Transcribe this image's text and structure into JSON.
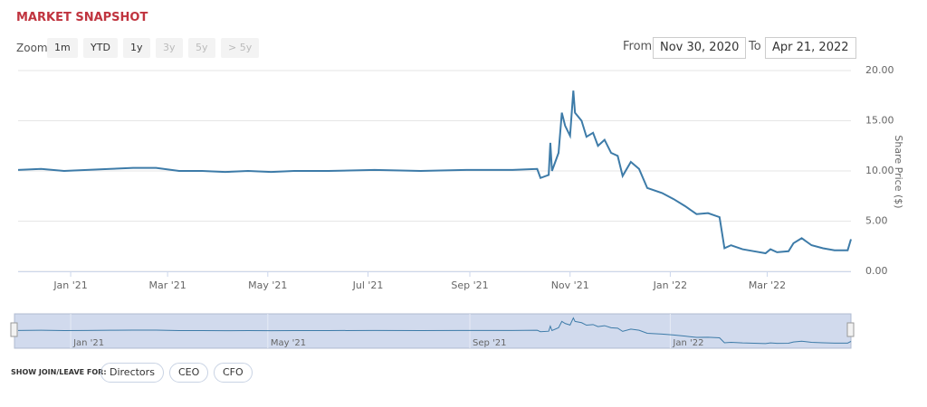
{
  "header": {
    "title": "MARKET SNAPSHOT"
  },
  "zoom": {
    "label": "Zoom",
    "buttons": [
      "1m",
      "YTD",
      "1y",
      "3y",
      "5y",
      "> 5y"
    ]
  },
  "range": {
    "from_label": "From",
    "from": "Nov 30, 2020",
    "to_label": "To",
    "to": "Apr 21, 2022"
  },
  "chart_data": {
    "type": "line",
    "y_label": "Share Price ($)",
    "x": [
      "2020-11-30",
      "2020-12-14",
      "2020-12-28",
      "2021-01-11",
      "2021-01-25",
      "2021-02-08",
      "2021-02-22",
      "2021-03-08",
      "2021-03-22",
      "2021-04-05",
      "2021-04-19",
      "2021-05-03",
      "2021-05-17",
      "2021-06-07",
      "2021-07-05",
      "2021-08-02",
      "2021-08-30",
      "2021-09-27",
      "2021-10-12",
      "2021-10-14",
      "2021-10-19",
      "2021-10-20",
      "2021-10-21",
      "2021-10-25",
      "2021-10-27",
      "2021-10-29",
      "2021-11-01",
      "2021-11-03",
      "2021-11-04",
      "2021-11-08",
      "2021-11-11",
      "2021-11-15",
      "2021-11-18",
      "2021-11-22",
      "2021-11-26",
      "2021-11-30",
      "2021-12-03",
      "2021-12-08",
      "2021-12-13",
      "2021-12-18",
      "2021-12-27",
      "2022-01-03",
      "2022-01-10",
      "2022-01-17",
      "2022-01-24",
      "2022-01-31",
      "2022-02-03",
      "2022-02-07",
      "2022-02-14",
      "2022-02-21",
      "2022-02-28",
      "2022-03-03",
      "2022-03-07",
      "2022-03-14",
      "2022-03-17",
      "2022-03-22",
      "2022-03-28",
      "2022-04-04",
      "2022-04-11",
      "2022-04-19",
      "2022-04-21"
    ],
    "series": [
      {
        "name": "Share Price",
        "color": "#3d7ba8",
        "values": [
          10.1,
          10.2,
          10.0,
          10.1,
          10.2,
          10.3,
          10.3,
          10.0,
          10.0,
          9.9,
          10.0,
          9.9,
          10.0,
          10.0,
          10.1,
          10.0,
          10.1,
          10.1,
          10.2,
          9.3,
          9.6,
          12.8,
          10.0,
          11.8,
          15.8,
          14.5,
          13.5,
          18.0,
          15.8,
          15.0,
          13.4,
          13.8,
          12.5,
          13.1,
          11.8,
          11.5,
          9.5,
          10.9,
          10.2,
          8.3,
          7.8,
          7.2,
          6.5,
          5.7,
          5.8,
          5.4,
          2.3,
          2.6,
          2.2,
          2.0,
          1.8,
          2.2,
          1.9,
          2.0,
          2.8,
          3.3,
          2.6,
          2.3,
          2.1,
          2.1,
          3.2
        ]
      }
    ],
    "xlim": [
      "2020-11-30",
      "2022-04-21"
    ],
    "xticks": [
      {
        "value": "2021-01-01",
        "label": "Jan '21"
      },
      {
        "value": "2021-03-01",
        "label": "Mar '21"
      },
      {
        "value": "2021-05-01",
        "label": "May '21"
      },
      {
        "value": "2021-07-01",
        "label": "Jul '21"
      },
      {
        "value": "2021-09-01",
        "label": "Sep '21"
      },
      {
        "value": "2021-11-01",
        "label": "Nov '21"
      },
      {
        "value": "2022-01-01",
        "label": "Jan '22"
      },
      {
        "value": "2022-03-01",
        "label": "Mar '22"
      }
    ],
    "ylim": [
      0,
      20
    ],
    "yticks": [
      {
        "value": 0,
        "label": "0.00"
      },
      {
        "value": 5,
        "label": "5.00"
      },
      {
        "value": 10,
        "label": "10.00"
      },
      {
        "value": 15,
        "label": "15.00"
      },
      {
        "value": 20,
        "label": "20.00"
      }
    ],
    "grid": true
  },
  "footer": {
    "label": "SHOW JOIN/LEAVE FOR:",
    "buttons": [
      "Directors",
      "CEO",
      "CFO"
    ]
  }
}
